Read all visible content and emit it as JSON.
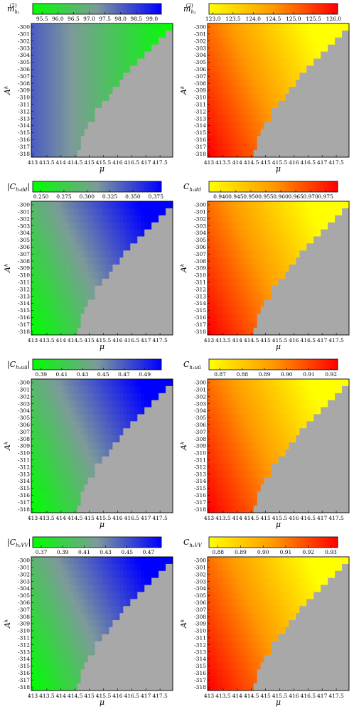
{
  "panels": [
    {
      "id": "p1",
      "cb_label_main": "m",
      "cb_label_sup": "(2)",
      "cb_label_sub": "h₁",
      "colormap": "green-blue",
      "cb_ticks": [
        "95.5",
        "96.0",
        "96.5",
        "97.0",
        "97.5",
        "98.0",
        "98.5",
        "99.0"
      ],
      "cb_range": [
        95.2,
        99.3
      ]
    },
    {
      "id": "p2",
      "cb_label_main": "m",
      "cb_label_sup": "(2)",
      "cb_label_sub": "h₂",
      "colormap": "yellow-red",
      "cb_ticks": [
        "123.0",
        "123.5",
        "124.0",
        "124.5",
        "125.0",
        "125.5",
        "126.0"
      ],
      "cb_range": [
        122.9,
        126.1
      ]
    },
    {
      "id": "p3",
      "cb_label_main": "|C",
      "cb_label_sub": "h₁dd",
      "cb_label_end": "|",
      "colormap": "green-blue",
      "cb_ticks": [
        "0.250",
        "0.275",
        "0.300",
        "0.325",
        "0.350",
        "0.375"
      ],
      "cb_range": [
        0.241,
        0.381
      ]
    },
    {
      "id": "p4",
      "cb_label_main": "C",
      "cb_label_sub": "h₂dd",
      "colormap": "yellow-red",
      "cb_ticks": [
        "0.940",
        "0.945",
        "0.950",
        "0.955",
        "0.960",
        "0.965",
        "0.970",
        "0.975"
      ],
      "cb_range": [
        0.936,
        0.979
      ]
    },
    {
      "id": "p5",
      "cb_label_main": "|C",
      "cb_label_sub": "h₁uū",
      "cb_label_end": "|",
      "colormap": "green-blue",
      "cb_ticks": [
        "0.39",
        "0.41",
        "0.43",
        "0.45",
        "0.47",
        "0.49"
      ],
      "cb_range": [
        0.382,
        0.506
      ]
    },
    {
      "id": "p6",
      "cb_label_main": "C",
      "cb_label_sub": "h₂uū",
      "colormap": "yellow-red",
      "cb_ticks": [
        "0.87",
        "0.88",
        "0.89",
        "0.90",
        "0.91",
        "0.92"
      ],
      "cb_range": [
        0.865,
        0.923
      ]
    },
    {
      "id": "p7",
      "cb_label_main": "|C",
      "cb_label_sub": "h₁VV",
      "cb_label_end": "|",
      "colormap": "green-blue",
      "cb_ticks": [
        "0.37",
        "0.39",
        "0.41",
        "0.43",
        "0.45",
        "0.47"
      ],
      "cb_range": [
        0.362,
        0.482
      ]
    },
    {
      "id": "p8",
      "cb_label_main": "C",
      "cb_label_sub": "h₂VV",
      "colormap": "yellow-red",
      "cb_ticks": [
        "0.88",
        "0.89",
        "0.90",
        "0.91",
        "0.92",
        "0.93"
      ],
      "cb_range": [
        0.876,
        0.933
      ]
    }
  ],
  "chart_data": {
    "type": "heatmap",
    "xlabel": "μ",
    "ylabel": "Aᵏ",
    "x_ticks": [
      "413",
      "413.5",
      "414",
      "414.5",
      "415",
      "415.5",
      "416",
      "416.5",
      "417",
      "417.5"
    ],
    "y_ticks": [
      "-300",
      "-301",
      "-302",
      "-303",
      "-304",
      "-305",
      "-306",
      "-307",
      "-308",
      "-309",
      "-310",
      "-311",
      "-312",
      "-313",
      "-314",
      "-315",
      "-316",
      "-317",
      "-318"
    ],
    "x_range": [
      413,
      418
    ],
    "y_range": [
      -300,
      -318
    ],
    "excluded_region_color": "#a8a8a8",
    "colors": {
      "green": "#00ff00",
      "blue": "#0000ff",
      "yellow": "#ffff00",
      "orange": "#ff8c00",
      "red": "#ff0000"
    },
    "allowed_region_boundary": {
      "description": "valid for mu below boundary; boundary mu per A^k row",
      "A": [
        -300,
        -301,
        -302,
        -303,
        -304,
        -305,
        -306,
        -307,
        -308,
        -309,
        -310,
        -311,
        -312,
        -313,
        -314,
        -315,
        -316,
        -317,
        -318
      ],
      "mu_max": [
        418.0,
        417.8,
        417.5,
        417.3,
        417.0,
        416.8,
        416.5,
        416.3,
        416.1,
        415.9,
        415.7,
        415.5,
        415.3,
        415.2,
        415.0,
        414.9,
        414.8,
        414.7,
        414.6
      ]
    }
  }
}
